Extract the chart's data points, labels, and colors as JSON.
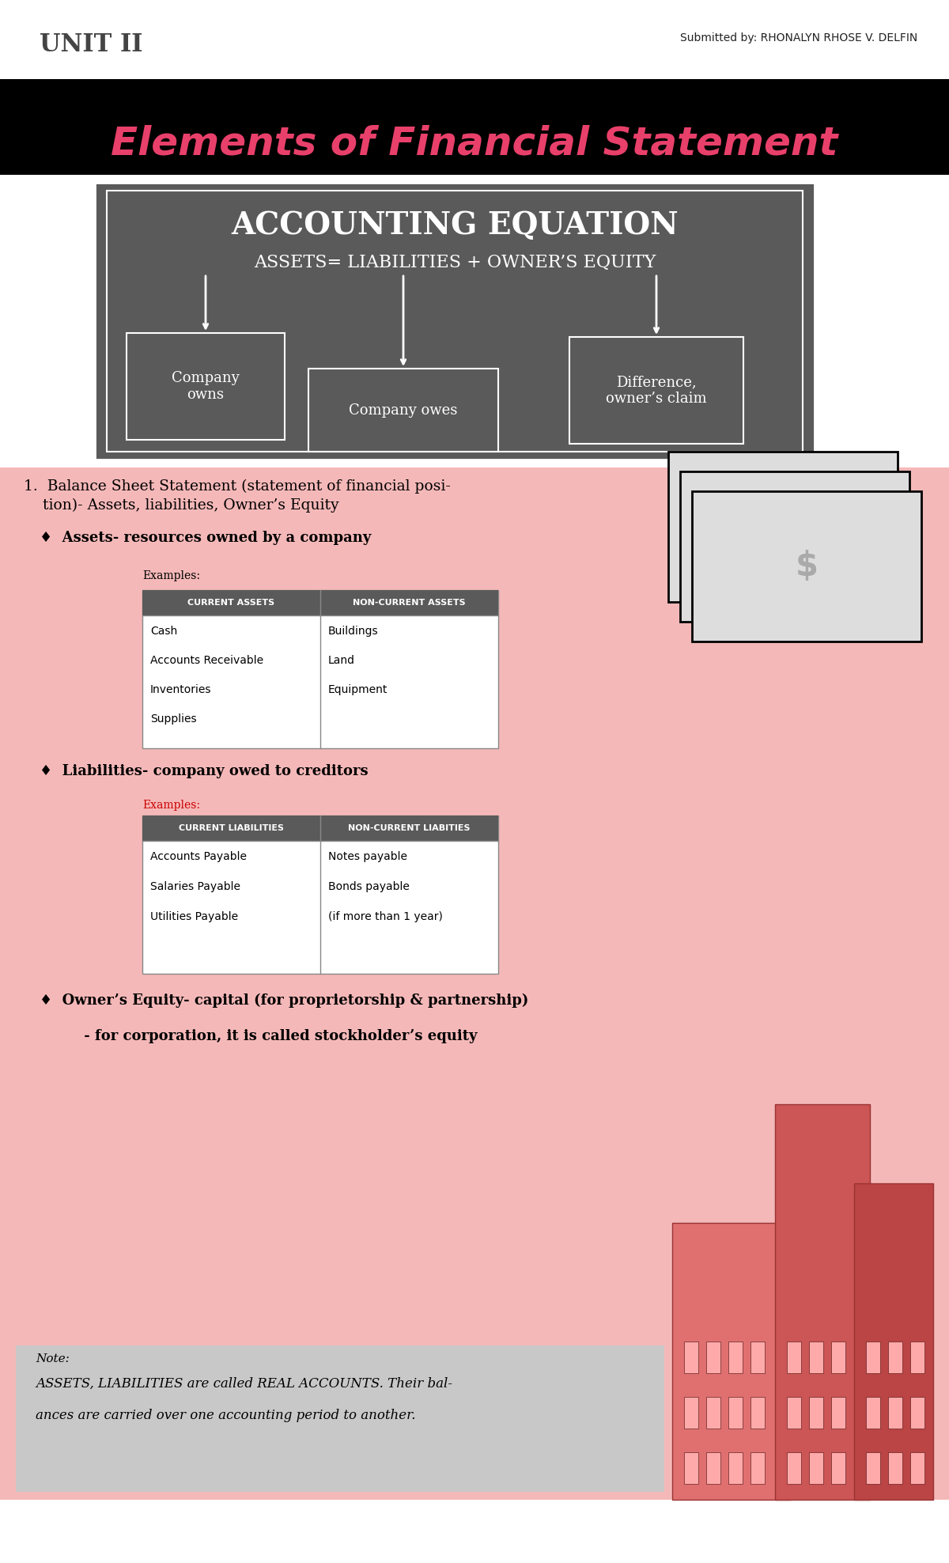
{
  "title_unit": "UNIT II",
  "title_submitted": "Submitted by: RHONALYN RHOSE V. DELFIN",
  "banner_title": "Elements of Financial Statement",
  "accounting_eq_title": "ACCOUNTING EQUATION",
  "accounting_eq_formula": "ASSETS= LIABILITIES + OWNER’S EQUITY",
  "box1_text": "Company\nowns",
  "box2_text": "Company owes",
  "box3_text": "Difference,\nowner’s claim",
  "pink_bg": "#f5b8b8",
  "section1_title": "1.  Balance Sheet Statement (statement of financial posi-\n    tion)- Assets, liabilities, Owner’s Equity",
  "bullet1": "♦  Assets- resources owned by a company",
  "examples_label": "Examples:",
  "examples2_label": "Examples:",
  "table1_headers": [
    "CURRENT ASSETS",
    "NON-CURRENT ASSETS"
  ],
  "table1_col1": [
    "Cash",
    "Accounts Receivable",
    "Inventories",
    "Supplies"
  ],
  "table1_col2": [
    "Buildings",
    "Land",
    "Equipment"
  ],
  "bullet2": "♦  Liabilities- company owed to creditors",
  "table2_headers": [
    "CURRENT LIABILITIES",
    "NON-CURRENT LIABITIES"
  ],
  "table2_col1": [
    "Accounts Payable",
    "Salaries Payable",
    "Utilities Payable"
  ],
  "table2_col2": [
    "Notes payable",
    "Bonds payable",
    "(if more than 1 year)"
  ],
  "bullet3_line1": "♦  Owner’s Equity- capital (for proprietorship & partnership)",
  "bullet3_line2": "         - for corporation, it is called stockholder’s equity",
  "note_text_line1": "Note:",
  "note_text_line2": "ASSETS, LIABILITIES are called REAL ACCOUNTS. Their bal-",
  "note_text_line3": "ances are carried over one accounting period to another.",
  "white": "#ffffff",
  "dark_gray": "#5a5a5a",
  "table_header_bg": "#5a5a5a",
  "examples2_color": "#cc0000"
}
